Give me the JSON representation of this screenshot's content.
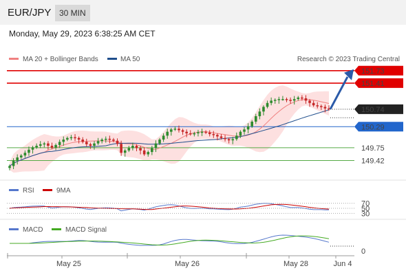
{
  "header": {
    "pair": "EUR/JPY",
    "timeframe": "30 MIN"
  },
  "timestamp": "Monday, May 29, 2023 6:38:25 AM CET",
  "credit": "Research © 2023 Trading Central",
  "colors": {
    "ma20": "#f08080",
    "ma50": "#1f4e8c",
    "band_fill": "#fde0e0",
    "resistance": "#e00000",
    "support": "#2266cc",
    "target": "#55aa44",
    "bull": "#2e8b2e",
    "bear": "#c62828",
    "rsi": "#5577cc",
    "rsi_ma": "#cc0000",
    "macd": "#5577cc",
    "macd_signal": "#44aa22",
    "arrow": "#2a5aa8"
  },
  "chart_data": [
    {
      "type": "candlestick",
      "legend": [
        "MA 20 + Bollinger Bands",
        "MA 50"
      ],
      "x_labels": [
        "May 25",
        "May 26",
        "May 28",
        "Jun 4"
      ],
      "ylim": [
        149.2,
        151.85
      ],
      "price_levels": [
        {
          "value": 151.73,
          "label": "151.73",
          "kind": "resistance"
        },
        {
          "value": 151.41,
          "label": "151.41",
          "kind": "resistance"
        },
        {
          "value": 150.74,
          "label": "150.74",
          "kind": "last"
        },
        {
          "value": 150.29,
          "label": "150.29",
          "kind": "support"
        },
        {
          "value": 149.75,
          "label": "149.75",
          "kind": "target"
        },
        {
          "value": 149.42,
          "label": "149.42",
          "kind": "target"
        }
      ],
      "close": [
        149.28,
        149.42,
        149.5,
        149.55,
        149.62,
        149.7,
        149.76,
        149.8,
        149.84,
        149.86,
        149.8,
        149.75,
        149.82,
        149.9,
        149.96,
        150.0,
        150.02,
        150.0,
        149.96,
        149.9,
        149.84,
        149.8,
        149.86,
        149.92,
        149.96,
        149.98,
        149.96,
        149.93,
        149.85,
        149.62,
        149.68,
        149.74,
        149.8,
        149.74,
        149.68,
        149.58,
        149.64,
        149.74,
        149.86,
        149.96,
        150.06,
        150.16,
        150.22,
        150.24,
        150.2,
        150.16,
        150.12,
        150.1,
        150.12,
        150.15,
        150.16,
        150.14,
        150.1,
        150.08,
        150.04,
        150.0,
        149.97,
        149.94,
        149.97,
        150.06,
        150.16,
        150.22,
        150.3,
        150.42,
        150.56,
        150.68,
        150.8,
        150.9,
        150.96,
        150.98,
        151.0,
        151.0,
        150.98,
        150.96,
        151.0,
        151.04,
        151.02,
        150.96,
        150.9,
        150.84,
        150.82,
        150.8,
        150.76,
        150.74
      ]
    },
    {
      "type": "line",
      "legend": [
        "RSI",
        "9MA"
      ],
      "levels": [
        70,
        50,
        30
      ],
      "ylim": [
        20,
        80
      ]
    },
    {
      "type": "line",
      "legend": [
        "MACD",
        "MACD Signal"
      ],
      "levels": [
        0
      ]
    }
  ]
}
